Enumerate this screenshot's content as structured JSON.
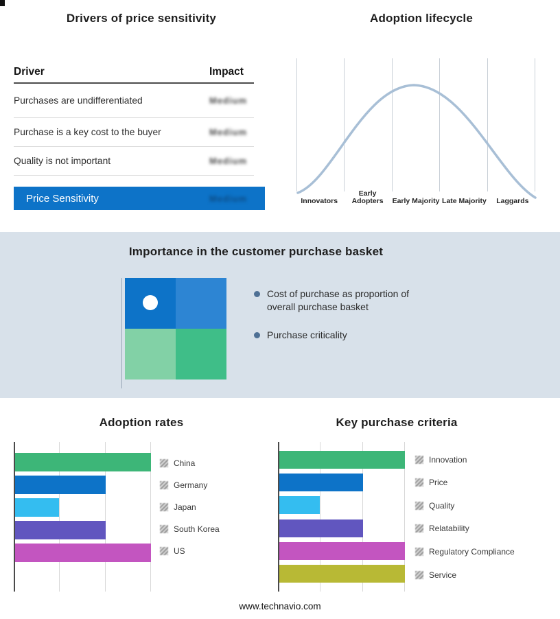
{
  "drivers": {
    "title": "Drivers of price sensitivity",
    "columns": {
      "driver": "Driver",
      "impact": "Impact"
    },
    "rows": [
      {
        "driver": "Purchases are undifferentiated",
        "impact": "Medium"
      },
      {
        "driver": "Purchase is a key cost to the buyer",
        "impact": "Medium"
      },
      {
        "driver": "Quality is not important",
        "impact": "Medium"
      }
    ],
    "summary": {
      "label": "Price Sensitivity",
      "impact": "Medium"
    }
  },
  "basket": {
    "title": "Importance in the customer purchase basket",
    "bullets": [
      "Cost of purchase as proportion of overall purchase basket",
      "Purchase criticality"
    ],
    "quadrant_colors": {
      "top_left": "#0d73c8",
      "top_right": "#2d85d3",
      "bottom_left": "#82d1a6",
      "bottom_right": "#3fbe88"
    }
  },
  "footer": {
    "url": "www.technavio.com"
  },
  "colors": {
    "accent_blue": "#0d73c8",
    "band_background": "#d8e1ea",
    "curve": "#a8bfd6",
    "bullet_dot": "#4e7095"
  },
  "chart_data": [
    {
      "id": "adoption-lifecycle",
      "type": "line",
      "title": "Adoption lifecycle",
      "x": [
        "Innovators",
        "Early Adopters",
        "Early Majority",
        "Late Majority",
        "Laggards"
      ],
      "y_percent_of_peak": [
        3,
        60,
        100,
        60,
        3
      ],
      "shape": "bell curve peaking at Early Majority",
      "grid": "vertical category separator lines, no y-axis values",
      "line_color": "#a8bfd6",
      "legend_position": "none"
    },
    {
      "id": "adoption-rates",
      "type": "bar",
      "orientation": "horizontal",
      "title": "Adoption rates",
      "categories": [
        "China",
        "Germany",
        "Japan",
        "South Korea",
        "US"
      ],
      "values": [
        100,
        67,
        33,
        67,
        100
      ],
      "value_unit": "percent of chart width (no numeric axis labels shown)",
      "xlim": [
        0,
        100
      ],
      "grid": "vertical gridlines at thirds",
      "colors": [
        "#3db678",
        "#0d73c8",
        "#34bdf0",
        "#6156bf",
        "#c355c0"
      ],
      "legend_position": "right"
    },
    {
      "id": "key-purchase-criteria",
      "type": "bar",
      "orientation": "horizontal",
      "title": "Key purchase criteria",
      "categories": [
        "Innovation",
        "Price",
        "Quality",
        "Relatability",
        "Regulatory Compliance",
        "Service"
      ],
      "values": [
        100,
        67,
        33,
        67,
        100,
        100
      ],
      "value_unit": "percent of chart width (no numeric axis labels shown)",
      "xlim": [
        0,
        100
      ],
      "grid": "vertical gridlines at thirds",
      "colors": [
        "#3db678",
        "#0d73c8",
        "#34bdf0",
        "#6156bf",
        "#c355c0",
        "#b8b935"
      ],
      "legend_position": "right"
    }
  ]
}
